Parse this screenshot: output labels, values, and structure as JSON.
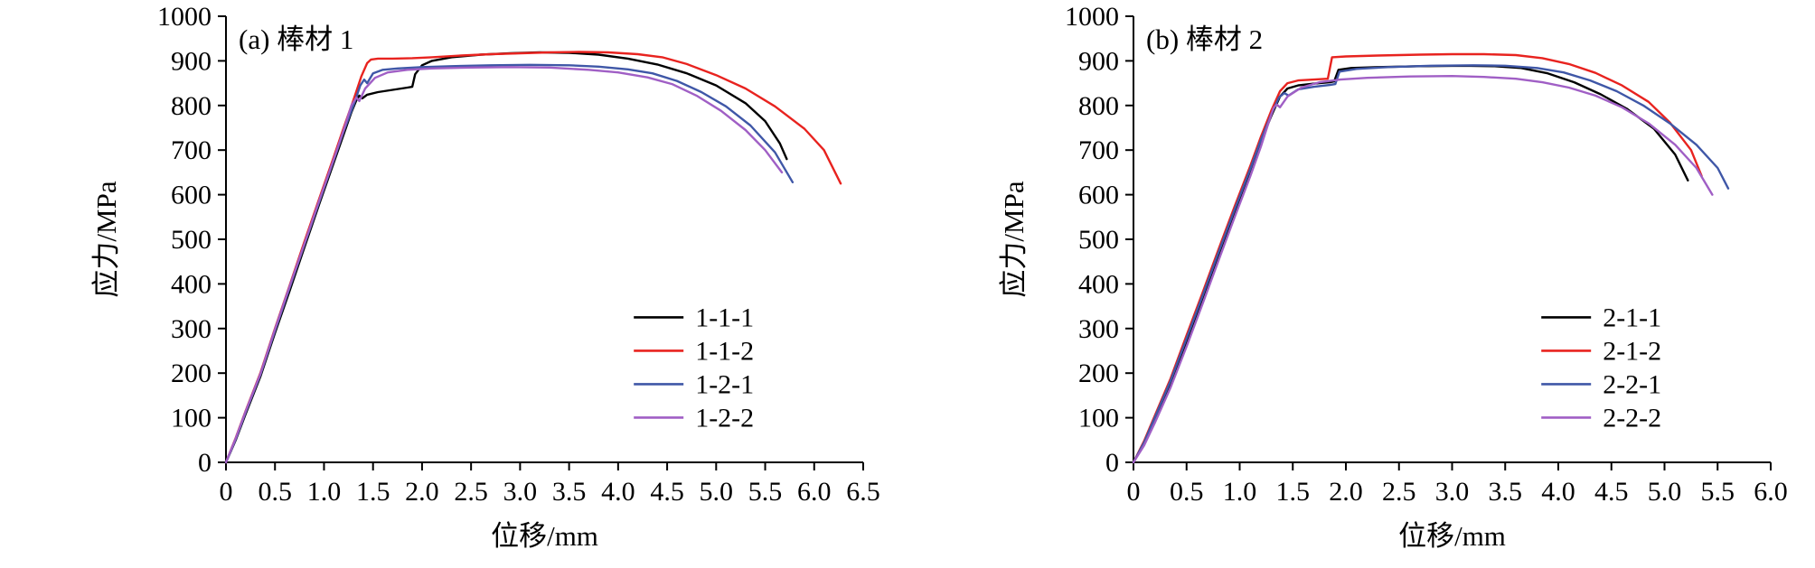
{
  "figure": {
    "background": "#ffffff",
    "axis_color": "#000000"
  },
  "chart_data": [
    {
      "type": "line",
      "title": "(a) 棒材 1",
      "xlabel": "位移/mm",
      "ylabel": "应力/MPa",
      "xlim": [
        0,
        6.5
      ],
      "ylim": [
        0,
        1000
      ],
      "xtick_step": 0.5,
      "ytick_step": 100,
      "grid": false,
      "legend_position": "inside-lower-right",
      "series": [
        {
          "name": "1-1-1",
          "color": "#000000",
          "points": [
            [
              0,
              0
            ],
            [
              0.1,
              50
            ],
            [
              0.2,
              108
            ],
            [
              0.35,
              192
            ],
            [
              0.5,
              290
            ],
            [
              0.65,
              385
            ],
            [
              0.8,
              482
            ],
            [
              0.95,
              578
            ],
            [
              1.1,
              672
            ],
            [
              1.2,
              735
            ],
            [
              1.28,
              785
            ],
            [
              1.33,
              812
            ],
            [
              1.36,
              822
            ],
            [
              1.39,
              816
            ],
            [
              1.44,
              824
            ],
            [
              1.55,
              830
            ],
            [
              1.7,
              835
            ],
            [
              1.85,
              840
            ],
            [
              1.9,
              842
            ],
            [
              1.93,
              870
            ],
            [
              2.0,
              890
            ],
            [
              2.1,
              900
            ],
            [
              2.3,
              908
            ],
            [
              2.6,
              914
            ],
            [
              2.9,
              917
            ],
            [
              3.2,
              919
            ],
            [
              3.5,
              918
            ],
            [
              3.8,
              914
            ],
            [
              4.1,
              905
            ],
            [
              4.4,
              892
            ],
            [
              4.7,
              872
            ],
            [
              5.0,
              845
            ],
            [
              5.3,
              805
            ],
            [
              5.5,
              765
            ],
            [
              5.65,
              715
            ],
            [
              5.72,
              680
            ]
          ]
        },
        {
          "name": "1-1-2",
          "color": "#e8231f",
          "points": [
            [
              0,
              0
            ],
            [
              0.1,
              55
            ],
            [
              0.2,
              115
            ],
            [
              0.35,
              200
            ],
            [
              0.5,
              300
            ],
            [
              0.65,
              397
            ],
            [
              0.8,
              495
            ],
            [
              0.95,
              590
            ],
            [
              1.1,
              685
            ],
            [
              1.2,
              750
            ],
            [
              1.3,
              812
            ],
            [
              1.38,
              865
            ],
            [
              1.44,
              895
            ],
            [
              1.48,
              903
            ],
            [
              1.55,
              905
            ],
            [
              1.7,
              905
            ],
            [
              1.9,
              906
            ],
            [
              2.1,
              908
            ],
            [
              2.4,
              912
            ],
            [
              2.7,
              915
            ],
            [
              3.0,
              917
            ],
            [
              3.3,
              919
            ],
            [
              3.6,
              920
            ],
            [
              3.9,
              919
            ],
            [
              4.2,
              915
            ],
            [
              4.45,
              908
            ],
            [
              4.7,
              893
            ],
            [
              5.0,
              868
            ],
            [
              5.3,
              838
            ],
            [
              5.6,
              798
            ],
            [
              5.9,
              748
            ],
            [
              6.1,
              700
            ],
            [
              6.27,
              625
            ]
          ]
        },
        {
          "name": "1-2-1",
          "color": "#3f57a7",
          "points": [
            [
              0,
              0
            ],
            [
              0.1,
              52
            ],
            [
              0.2,
              112
            ],
            [
              0.35,
              196
            ],
            [
              0.5,
              295
            ],
            [
              0.65,
              392
            ],
            [
              0.8,
              488
            ],
            [
              0.95,
              583
            ],
            [
              1.1,
              678
            ],
            [
              1.2,
              742
            ],
            [
              1.3,
              800
            ],
            [
              1.37,
              845
            ],
            [
              1.41,
              858
            ],
            [
              1.44,
              850
            ],
            [
              1.5,
              872
            ],
            [
              1.6,
              880
            ],
            [
              1.75,
              883
            ],
            [
              2.0,
              886
            ],
            [
              2.3,
              888
            ],
            [
              2.7,
              890
            ],
            [
              3.1,
              891
            ],
            [
              3.5,
              890
            ],
            [
              3.8,
              887
            ],
            [
              4.1,
              881
            ],
            [
              4.35,
              872
            ],
            [
              4.6,
              855
            ],
            [
              4.85,
              830
            ],
            [
              5.1,
              798
            ],
            [
              5.35,
              755
            ],
            [
              5.6,
              695
            ],
            [
              5.78,
              628
            ]
          ]
        },
        {
          "name": "1-2-2",
          "color": "#a05fc5",
          "points": [
            [
              0,
              0
            ],
            [
              0.1,
              54
            ],
            [
              0.2,
              114
            ],
            [
              0.35,
              198
            ],
            [
              0.5,
              298
            ],
            [
              0.65,
              395
            ],
            [
              0.8,
              490
            ],
            [
              0.95,
              586
            ],
            [
              1.1,
              680
            ],
            [
              1.2,
              745
            ],
            [
              1.28,
              800
            ],
            [
              1.33,
              818
            ],
            [
              1.36,
              810
            ],
            [
              1.42,
              838
            ],
            [
              1.52,
              862
            ],
            [
              1.65,
              874
            ],
            [
              1.85,
              880
            ],
            [
              2.1,
              883
            ],
            [
              2.5,
              885
            ],
            [
              2.9,
              886
            ],
            [
              3.3,
              885
            ],
            [
              3.7,
              880
            ],
            [
              4.0,
              874
            ],
            [
              4.3,
              863
            ],
            [
              4.55,
              848
            ],
            [
              4.8,
              822
            ],
            [
              5.05,
              788
            ],
            [
              5.3,
              745
            ],
            [
              5.5,
              700
            ],
            [
              5.67,
              650
            ]
          ]
        }
      ]
    },
    {
      "type": "line",
      "title": "(b) 棒材 2",
      "xlabel": "位移/mm",
      "ylabel": "应力/MPa",
      "xlim": [
        0,
        6.0
      ],
      "ylim": [
        0,
        1000
      ],
      "xtick_step": 0.5,
      "ytick_step": 100,
      "grid": false,
      "legend_position": "inside-lower-right",
      "series": [
        {
          "name": "2-1-1",
          "color": "#000000",
          "points": [
            [
              0,
              0
            ],
            [
              0.1,
              42
            ],
            [
              0.2,
              95
            ],
            [
              0.35,
              178
            ],
            [
              0.5,
              272
            ],
            [
              0.65,
              368
            ],
            [
              0.8,
              465
            ],
            [
              0.95,
              560
            ],
            [
              1.1,
              655
            ],
            [
              1.2,
              720
            ],
            [
              1.3,
              778
            ],
            [
              1.38,
              820
            ],
            [
              1.45,
              838
            ],
            [
              1.55,
              845
            ],
            [
              1.7,
              849
            ],
            [
              1.85,
              852
            ],
            [
              1.89,
              854
            ],
            [
              1.93,
              880
            ],
            [
              2.05,
              884
            ],
            [
              2.3,
              886
            ],
            [
              2.7,
              888
            ],
            [
              3.1,
              889
            ],
            [
              3.4,
              888
            ],
            [
              3.65,
              884
            ],
            [
              3.9,
              872
            ],
            [
              4.15,
              852
            ],
            [
              4.4,
              825
            ],
            [
              4.65,
              792
            ],
            [
              4.9,
              748
            ],
            [
              5.1,
              690
            ],
            [
              5.22,
              632
            ]
          ]
        },
        {
          "name": "2-1-2",
          "color": "#e8231f",
          "points": [
            [
              0,
              0
            ],
            [
              0.1,
              48
            ],
            [
              0.2,
              104
            ],
            [
              0.35,
              188
            ],
            [
              0.5,
              285
            ],
            [
              0.65,
              380
            ],
            [
              0.8,
              477
            ],
            [
              0.95,
              572
            ],
            [
              1.1,
              665
            ],
            [
              1.2,
              730
            ],
            [
              1.3,
              790
            ],
            [
              1.38,
              832
            ],
            [
              1.45,
              850
            ],
            [
              1.55,
              856
            ],
            [
              1.7,
              858
            ],
            [
              1.83,
              860
            ],
            [
              1.87,
              908
            ],
            [
              2.0,
              910
            ],
            [
              2.3,
              912
            ],
            [
              2.7,
              914
            ],
            [
              3.0,
              915
            ],
            [
              3.3,
              915
            ],
            [
              3.6,
              913
            ],
            [
              3.85,
              906
            ],
            [
              4.1,
              893
            ],
            [
              4.35,
              873
            ],
            [
              4.6,
              845
            ],
            [
              4.85,
              808
            ],
            [
              5.05,
              762
            ],
            [
              5.25,
              700
            ],
            [
              5.35,
              642
            ]
          ]
        },
        {
          "name": "2-2-1",
          "color": "#3f57a7",
          "points": [
            [
              0,
              0
            ],
            [
              0.1,
              45
            ],
            [
              0.2,
              100
            ],
            [
              0.35,
              183
            ],
            [
              0.5,
              278
            ],
            [
              0.65,
              373
            ],
            [
              0.8,
              470
            ],
            [
              0.95,
              565
            ],
            [
              1.1,
              658
            ],
            [
              1.2,
              723
            ],
            [
              1.3,
              782
            ],
            [
              1.37,
              818
            ],
            [
              1.42,
              828
            ],
            [
              1.46,
              822
            ],
            [
              1.55,
              836
            ],
            [
              1.7,
              842
            ],
            [
              1.85,
              846
            ],
            [
              1.9,
              848
            ],
            [
              1.94,
              876
            ],
            [
              2.1,
              882
            ],
            [
              2.4,
              886
            ],
            [
              2.8,
              889
            ],
            [
              3.2,
              890
            ],
            [
              3.5,
              889
            ],
            [
              3.8,
              884
            ],
            [
              4.05,
              874
            ],
            [
              4.3,
              856
            ],
            [
              4.55,
              832
            ],
            [
              4.8,
              800
            ],
            [
              5.05,
              760
            ],
            [
              5.3,
              712
            ],
            [
              5.5,
              660
            ],
            [
              5.6,
              614
            ]
          ]
        },
        {
          "name": "2-2-2",
          "color": "#a05fc5",
          "points": [
            [
              0,
              0
            ],
            [
              0.1,
              38
            ],
            [
              0.2,
              88
            ],
            [
              0.35,
              168
            ],
            [
              0.5,
              260
            ],
            [
              0.65,
              355
            ],
            [
              0.8,
              452
            ],
            [
              0.95,
              548
            ],
            [
              1.1,
              642
            ],
            [
              1.2,
              708
            ],
            [
              1.27,
              760
            ],
            [
              1.32,
              795
            ],
            [
              1.35,
              802
            ],
            [
              1.38,
              796
            ],
            [
              1.45,
              820
            ],
            [
              1.58,
              840
            ],
            [
              1.75,
              852
            ],
            [
              1.95,
              858
            ],
            [
              2.2,
              862
            ],
            [
              2.6,
              865
            ],
            [
              3.0,
              866
            ],
            [
              3.3,
              864
            ],
            [
              3.6,
              860
            ],
            [
              3.85,
              852
            ],
            [
              4.1,
              840
            ],
            [
              4.35,
              822
            ],
            [
              4.6,
              796
            ],
            [
              4.85,
              760
            ],
            [
              5.1,
              712
            ],
            [
              5.3,
              660
            ],
            [
              5.45,
              600
            ]
          ]
        }
      ]
    }
  ]
}
